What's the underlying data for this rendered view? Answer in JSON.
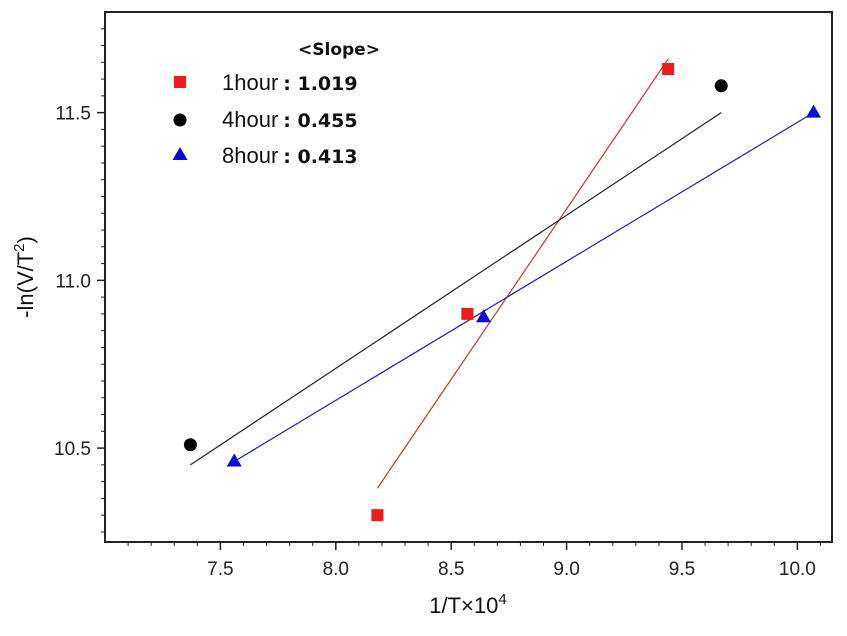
{
  "chart_data": {
    "type": "scatter",
    "xlabel_base": "1/T×10",
    "xlabel_sup": "4",
    "ylabel_base": "-ln(V/T",
    "ylabel_sup": "2",
    "ylabel_end": ")",
    "xlim": [
      7.0,
      10.15
    ],
    "ylim": [
      10.22,
      11.8
    ],
    "x_ticks": [
      "7.5",
      "8.0",
      "8.5",
      "9.0",
      "9.5",
      "10.0"
    ],
    "y_ticks": [
      "10.5",
      "11.0",
      "11.5"
    ],
    "legend_title": "<Slope>",
    "legend_position": "top-left",
    "series": [
      {
        "name": "1hour",
        "slope_label": ": 1.019",
        "marker": "square",
        "color": "#ee1c1c",
        "line_color": "#c0392b",
        "x": [
          8.18,
          8.57,
          9.44
        ],
        "y": [
          10.3,
          10.9,
          11.63
        ],
        "fit": {
          "x": [
            8.18,
            9.44
          ],
          "y": [
            10.38,
            11.66
          ]
        }
      },
      {
        "name": "4hour",
        "slope_label": ": 0.455",
        "marker": "circle",
        "color": "#000000",
        "line_color": "#222222",
        "x": [
          7.37,
          9.67
        ],
        "y": [
          10.51,
          11.58
        ],
        "fit": {
          "x": [
            7.37,
            9.67
          ],
          "y": [
            10.45,
            11.5
          ]
        }
      },
      {
        "name": "8hour",
        "slope_label": ": 0.413",
        "marker": "triangle",
        "color": "#0a0ad0",
        "line_color": "#1f1fb4",
        "x": [
          7.56,
          8.64,
          10.07
        ],
        "y": [
          10.46,
          10.89,
          11.5
        ],
        "fit": {
          "x": [
            7.56,
            10.07
          ],
          "y": [
            10.46,
            11.5
          ]
        }
      }
    ]
  }
}
